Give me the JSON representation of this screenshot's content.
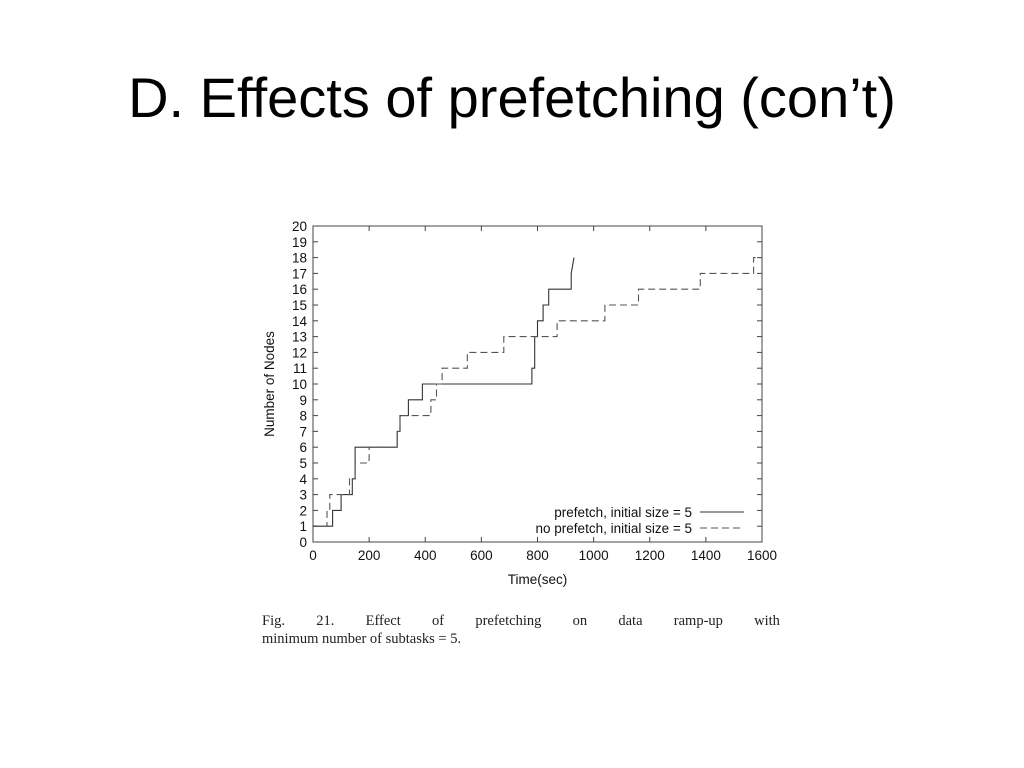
{
  "slide": {
    "title": "D. Effects of prefetching (con’t)"
  },
  "caption": {
    "line1_words": [
      "Fig.",
      "21.",
      "Effect",
      "of",
      "prefetching",
      "on",
      "data",
      "ramp-up",
      "with"
    ],
    "line2": "minimum number of subtasks = 5."
  },
  "chart_data": {
    "type": "line",
    "title": "",
    "xlabel": "Time(sec)",
    "ylabel": "Number of Nodes",
    "xlim": [
      0,
      1600
    ],
    "ylim": [
      0,
      20
    ],
    "xticks": [
      0,
      200,
      400,
      600,
      800,
      1000,
      1200,
      1400,
      1600
    ],
    "yticks": [
      0,
      1,
      2,
      3,
      4,
      5,
      6,
      7,
      8,
      9,
      10,
      11,
      12,
      13,
      14,
      15,
      16,
      17,
      18,
      19,
      20
    ],
    "grid": false,
    "legend_position": "bottom-right",
    "series": [
      {
        "name": "prefetch, initial size = 5",
        "style": "solid",
        "color": "#333333",
        "x": [
          0,
          70,
          70,
          100,
          100,
          140,
          140,
          150,
          150,
          300,
          300,
          310,
          310,
          340,
          340,
          390,
          390,
          400,
          400,
          780,
          780,
          790,
          790,
          800,
          800,
          820,
          820,
          840,
          840,
          920,
          920,
          930
        ],
        "y": [
          1,
          1,
          2,
          2,
          3,
          3,
          4,
          4,
          6,
          6,
          7,
          7,
          8,
          8,
          9,
          9,
          10,
          10,
          10,
          10,
          11,
          11,
          13,
          13,
          14,
          14,
          15,
          15,
          16,
          16,
          17,
          18
        ]
      },
      {
        "name": "no prefetch, initial size = 5",
        "style": "dashed",
        "color": "#555555",
        "x": [
          40,
          40,
          50,
          50,
          60,
          60,
          130,
          130,
          150,
          150,
          200,
          200,
          300,
          300,
          310,
          310,
          420,
          420,
          440,
          440,
          460,
          460,
          550,
          550,
          680,
          680,
          800,
          800,
          820,
          820,
          870,
          870,
          1040,
          1040,
          1160,
          1160,
          1380,
          1380,
          1570,
          1570,
          1600
        ],
        "y": [
          1,
          1,
          1,
          2,
          2,
          3,
          3,
          4,
          4,
          5,
          5,
          6,
          6,
          7,
          7,
          8,
          8,
          9,
          9,
          10,
          10,
          11,
          11,
          12,
          12,
          13,
          13,
          13,
          13,
          13,
          13,
          14,
          14,
          15,
          15,
          16,
          16,
          17,
          17,
          18,
          18
        ]
      }
    ]
  }
}
